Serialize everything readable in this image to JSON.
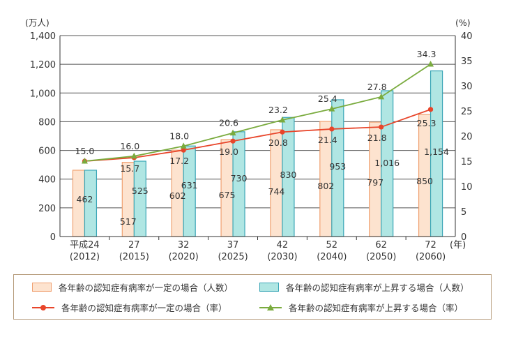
{
  "chart_data": {
    "type": "bar+line",
    "categories": [
      {
        "top": "平成24",
        "bottom": "(2012)"
      },
      {
        "top": "27",
        "bottom": "(2015)"
      },
      {
        "top": "32",
        "bottom": "(2020)"
      },
      {
        "top": "37",
        "bottom": "(2025)"
      },
      {
        "top": "42",
        "bottom": "(2030)"
      },
      {
        "top": "52",
        "bottom": "(2040)"
      },
      {
        "top": "62",
        "bottom": "(2050)"
      },
      {
        "top": "72",
        "bottom": "(2060)"
      }
    ],
    "year_unit": "(年)",
    "left_axis": {
      "unit": "(万人)",
      "min": 0,
      "max": 1400,
      "ticks": [
        0,
        200,
        400,
        600,
        800,
        1000,
        1200,
        1400
      ],
      "tick_labels": [
        "0",
        "200",
        "400",
        "600",
        "800",
        "1,000",
        "1,200",
        "1,400"
      ]
    },
    "right_axis": {
      "unit": "(%)",
      "min": 0,
      "max": 40,
      "ticks": [
        0,
        5,
        10,
        15,
        20,
        25,
        30,
        35,
        40
      ],
      "tick_labels": [
        "0",
        "5",
        "10",
        "15",
        "20",
        "25",
        "30",
        "35",
        "40"
      ]
    },
    "bars": [
      {
        "name": "各年齢の認知症有病率が一定の場合（人数）",
        "color": "#fde3cf",
        "edge": "#f0a070",
        "values": [
          462,
          517,
          602,
          675,
          744,
          802,
          797,
          850
        ],
        "labels": [
          "462",
          "517",
          "602",
          "675",
          "744",
          "802",
          "797",
          "850"
        ]
      },
      {
        "name": "各年齢の認知症有病率が上昇する場合（人数）",
        "color": "#b0e6e3",
        "edge": "#3aa6b6",
        "values": [
          462,
          525,
          631,
          730,
          830,
          953,
          1016,
          1154
        ],
        "labels": [
          "",
          "525",
          "631",
          "730",
          "830",
          "953",
          "1,016",
          "1,154"
        ]
      }
    ],
    "lines": [
      {
        "name": "各年齢の認知症有病率が一定の場合（率）",
        "color": "#e8452a",
        "marker": "circle",
        "values": [
          15.0,
          15.7,
          17.2,
          19.0,
          20.8,
          21.4,
          21.8,
          25.3
        ],
        "labels": [
          "",
          "15.7",
          "17.2",
          "19.0",
          "20.8",
          "21.4",
          "21.8",
          "25.3"
        ]
      },
      {
        "name": "各年齢の認知症有病率が上昇する場合（率）",
        "color": "#7aab3e",
        "marker": "triangle",
        "values": [
          15.0,
          16.0,
          18.0,
          20.6,
          23.2,
          25.4,
          27.8,
          34.3
        ],
        "labels": [
          "15.0",
          "16.0",
          "18.0",
          "20.6",
          "23.2",
          "25.4",
          "27.8",
          "34.3"
        ]
      }
    ],
    "grid": "horizontal",
    "legend_position": "bottom"
  }
}
